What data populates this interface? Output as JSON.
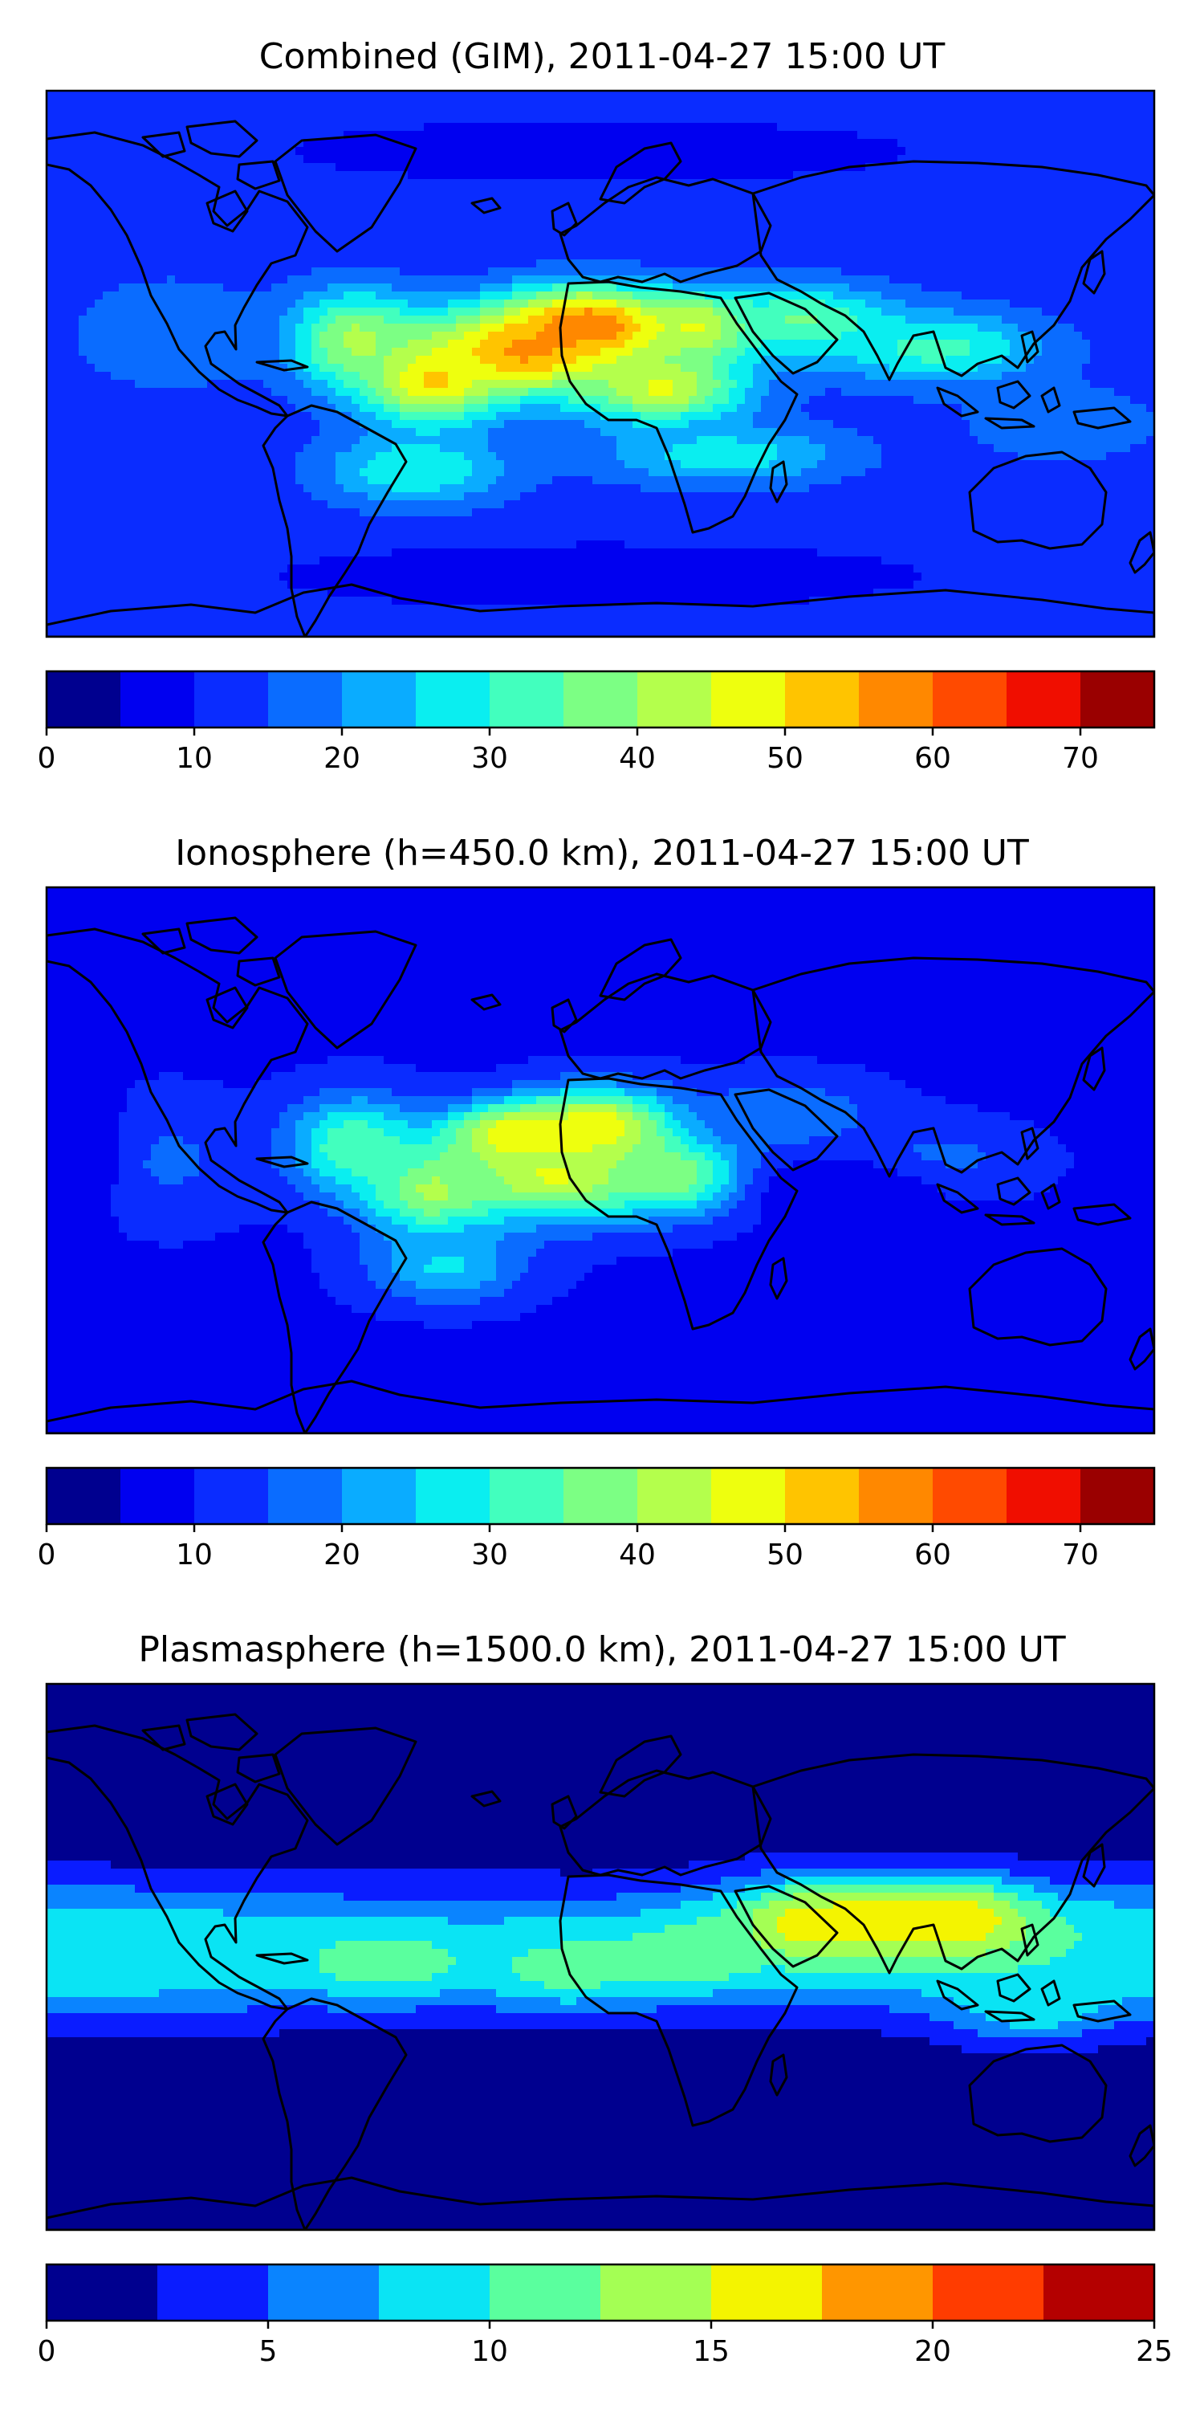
{
  "chart_data": [
    {
      "type": "filled-contour-map",
      "title": "Combined (GIM), 2011-04-27 15:00 UT",
      "colorbar": {
        "levels": [
          0,
          5,
          10,
          15,
          20,
          25,
          30,
          35,
          40,
          45,
          50,
          55,
          60,
          65,
          70,
          75
        ],
        "ticks": [
          0,
          10,
          20,
          30,
          40,
          50,
          60,
          70
        ],
        "colors": [
          "#00008f",
          "#0000f0",
          "#0a2cff",
          "#0a6cff",
          "#0aacff",
          "#0aeef0",
          "#42ffbe",
          "#7cff84",
          "#b4ff4c",
          "#eeff0e",
          "#ffc400",
          "#ff8800",
          "#ff4a00",
          "#f00e00",
          "#9a0000"
        ]
      },
      "background_value": 12,
      "fields": [
        {
          "lon": -3,
          "lat": 12,
          "value": 62,
          "radius_lon": 30,
          "radius_lat": 13
        },
        {
          "lon": -25,
          "lat": 4,
          "value": 57,
          "radius_lon": 32,
          "radius_lat": 14
        },
        {
          "lon": -55,
          "lat": -5,
          "value": 52,
          "radius_lon": 22,
          "radius_lat": 15
        },
        {
          "lon": 33,
          "lat": 12,
          "value": 50,
          "radius_lon": 16,
          "radius_lat": 10
        },
        {
          "lon": 20,
          "lat": -8,
          "value": 46,
          "radius_lon": 28,
          "radius_lat": 12
        },
        {
          "lon": -80,
          "lat": 8,
          "value": 42,
          "radius_lon": 22,
          "radius_lat": 16
        },
        {
          "lon": 65,
          "lat": 14,
          "value": 36,
          "radius_lon": 30,
          "radius_lat": 12
        },
        {
          "lon": 110,
          "lat": 5,
          "value": 32,
          "radius_lon": 35,
          "radius_lat": 12
        },
        {
          "lon": -60,
          "lat": -35,
          "value": 30,
          "radius_lon": 30,
          "radius_lat": 12
        },
        {
          "lon": 40,
          "lat": -30,
          "value": 28,
          "radius_lon": 40,
          "radius_lat": 10
        },
        {
          "lon": -140,
          "lat": 10,
          "value": 20,
          "radius_lon": 30,
          "radius_lat": 18
        },
        {
          "lon": 150,
          "lat": -20,
          "value": 20,
          "radius_lon": 30,
          "radius_lat": 12
        },
        {
          "lon": 0,
          "lat": -70,
          "value": 6,
          "radius_lon": 100,
          "radius_lat": 10
        },
        {
          "lon": 0,
          "lat": 70,
          "value": 8,
          "radius_lon": 120,
          "radius_lat": 12
        }
      ]
    },
    {
      "type": "filled-contour-map",
      "title": "Ionosphere  (h=450.0 km), 2011-04-27 15:00 UT",
      "colorbar": {
        "levels": [
          0,
          5,
          10,
          15,
          20,
          25,
          30,
          35,
          40,
          45,
          50,
          55,
          60,
          65,
          70,
          75
        ],
        "ticks": [
          0,
          10,
          20,
          30,
          40,
          50,
          60,
          70
        ],
        "colors": [
          "#00008f",
          "#0000f0",
          "#0a2cff",
          "#0a6cff",
          "#0aacff",
          "#0aeef0",
          "#42ffbe",
          "#7cff84",
          "#b4ff4c",
          "#eeff0e",
          "#ffc400",
          "#ff8800",
          "#ff4a00",
          "#f00e00",
          "#9a0000"
        ]
      },
      "background_value": 9,
      "fields": [
        {
          "lon": 0,
          "lat": 10,
          "value": 52,
          "radius_lon": 26,
          "radius_lat": 13
        },
        {
          "lon": -28,
          "lat": 8,
          "value": 52,
          "radius_lon": 22,
          "radius_lat": 10
        },
        {
          "lon": -15,
          "lat": -5,
          "value": 46,
          "radius_lon": 35,
          "radius_lat": 15
        },
        {
          "lon": -55,
          "lat": -10,
          "value": 42,
          "radius_lon": 22,
          "radius_lat": 15
        },
        {
          "lon": 25,
          "lat": -5,
          "value": 40,
          "radius_lon": 22,
          "radius_lat": 12
        },
        {
          "lon": -80,
          "lat": 5,
          "value": 35,
          "radius_lon": 22,
          "radius_lat": 16
        },
        {
          "lon": -50,
          "lat": -35,
          "value": 26,
          "radius_lon": 25,
          "radius_lat": 12
        },
        {
          "lon": 60,
          "lat": 15,
          "value": 20,
          "radius_lon": 30,
          "radius_lat": 12
        },
        {
          "lon": 110,
          "lat": 0,
          "value": 17,
          "radius_lon": 30,
          "radius_lat": 12
        },
        {
          "lon": -140,
          "lat": 0,
          "value": 16,
          "radius_lon": 25,
          "radius_lat": 20
        },
        {
          "lon": 80,
          "lat": -10,
          "value": 5,
          "radius_lon": 30,
          "radius_lat": 10
        },
        {
          "lon": -165,
          "lat": 5,
          "value": 6,
          "radius_lon": 10,
          "radius_lat": 20
        },
        {
          "lon": 0,
          "lat": -72,
          "value": 5,
          "radius_lon": 120,
          "radius_lat": 10
        },
        {
          "lon": 0,
          "lat": 70,
          "value": 6,
          "radius_lon": 120,
          "radius_lat": 12
        }
      ]
    },
    {
      "type": "filled-contour-map",
      "title": "Plasmasphere (h=1500.0 km), 2011-04-27 15:00 UT",
      "colorbar": {
        "levels": [
          0,
          2.5,
          5,
          7.5,
          10,
          12.5,
          15,
          17.5,
          20,
          22.5,
          25
        ],
        "ticks": [
          0,
          5,
          10,
          15,
          20,
          25
        ],
        "colors": [
          "#00008f",
          "#0a1cff",
          "#0a84ff",
          "#0ae4f4",
          "#5aff9e",
          "#a4ff54",
          "#f4f400",
          "#ff9600",
          "#ff3c00",
          "#b40000"
        ]
      },
      "background_value": 1.2,
      "fields": [
        {
          "lon": -180,
          "lat": 2,
          "value": 9.5,
          "radius_lon": 120,
          "radius_lat": 18
        },
        {
          "lon": 180,
          "lat": 2,
          "value": 9.5,
          "radius_lon": 120,
          "radius_lat": 18
        },
        {
          "lon": 0,
          "lat": 2,
          "value": 9.3,
          "radius_lon": 90,
          "radius_lat": 18
        },
        {
          "lon": 80,
          "lat": 12,
          "value": 16,
          "radius_lon": 40,
          "radius_lat": 14
        },
        {
          "lon": 115,
          "lat": 12,
          "value": 17,
          "radius_lon": 25,
          "radius_lat": 12
        },
        {
          "lon": 65,
          "lat": 10,
          "value": 16,
          "radius_lon": 12,
          "radius_lat": 8
        },
        {
          "lon": -70,
          "lat": -2,
          "value": 12,
          "radius_lon": 25,
          "radius_lat": 10
        },
        {
          "lon": -10,
          "lat": -5,
          "value": 11,
          "radius_lon": 25,
          "radius_lat": 10
        },
        {
          "lon": 30,
          "lat": 0,
          "value": 12,
          "radius_lon": 20,
          "radius_lat": 10
        },
        {
          "lon": 140,
          "lat": -15,
          "value": 10,
          "radius_lon": 25,
          "radius_lat": 12
        }
      ]
    }
  ]
}
